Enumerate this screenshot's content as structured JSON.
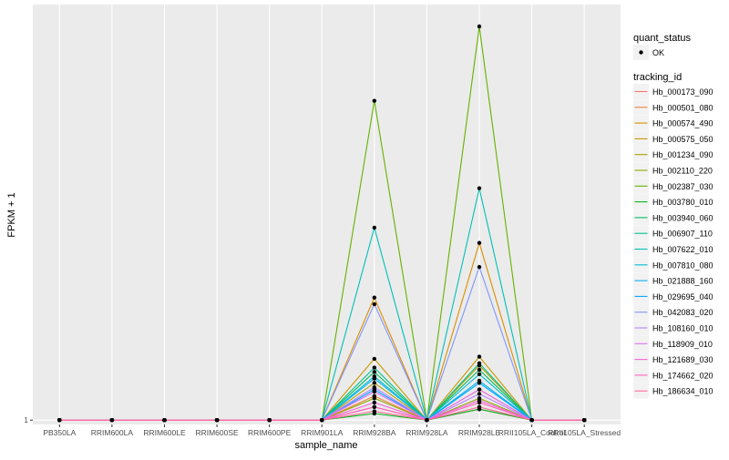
{
  "chart_data": {
    "type": "line",
    "xlabel": "sample_name",
    "ylabel": "FPKM + 1",
    "categories": [
      "PB350LA",
      "RRIM600LA",
      "RRIM600LE",
      "RRIM600SE",
      "RRIM600PE",
      "RRIM901LA",
      "RRIM928BA",
      "RRIM928LA",
      "RRIM928LE",
      "RRII105LA_Control",
      "RRII105LA_Stressed"
    ],
    "y_tick_labels": [
      "1"
    ],
    "y_tick_values": [
      1
    ],
    "ylim": [
      0.8,
      20
    ],
    "grid": true,
    "legend_position": "right",
    "legend": {
      "shape_title": "quant_status",
      "shape_item": "OK",
      "color_title": "tracking_id"
    },
    "series": [
      {
        "name": "Hb_000173_090",
        "color": "#F8766D",
        "values": [
          1,
          1,
          1,
          1,
          1,
          1,
          1.6,
          1,
          1.5,
          1,
          1
        ]
      },
      {
        "name": "Hb_000501_080",
        "color": "#EC8239",
        "values": [
          1,
          1,
          1,
          1,
          1,
          1,
          2.1,
          1,
          2.4,
          1,
          1
        ]
      },
      {
        "name": "Hb_000574_490",
        "color": "#DB8E00",
        "values": [
          1,
          1,
          1,
          1,
          1,
          1,
          6.6,
          1,
          9.1,
          1,
          1
        ]
      },
      {
        "name": "Hb_000575_050",
        "color": "#C79800",
        "values": [
          1,
          1,
          1,
          1,
          1,
          1,
          3.8,
          1,
          3.9,
          1,
          1
        ]
      },
      {
        "name": "Hb_001234_090",
        "color": "#AEA200",
        "values": [
          1,
          1,
          1,
          1,
          1,
          1,
          2.7,
          1,
          3.5,
          1,
          1
        ]
      },
      {
        "name": "Hb_002110_220",
        "color": "#8FAA00",
        "values": [
          1,
          1,
          1,
          1,
          1,
          1,
          2.0,
          1,
          2.0,
          1,
          1
        ]
      },
      {
        "name": "Hb_002387_030",
        "color": "#64B200",
        "values": [
          1,
          1,
          1,
          1,
          1,
          1,
          15.6,
          1,
          19.0,
          1,
          1
        ]
      },
      {
        "name": "Hb_003780_010",
        "color": "#00B81B",
        "values": [
          1,
          1,
          1,
          1,
          1,
          1,
          1.3,
          1,
          1.5,
          1,
          1
        ]
      },
      {
        "name": "Hb_003940_060",
        "color": "#00BD5C",
        "values": [
          1,
          1,
          1,
          1,
          1,
          1,
          3.2,
          1,
          3.3,
          1,
          1
        ]
      },
      {
        "name": "Hb_006907_110",
        "color": "#00C08E",
        "values": [
          1,
          1,
          1,
          1,
          1,
          1,
          3.4,
          1,
          3.6,
          1,
          1
        ]
      },
      {
        "name": "Hb_007622_010",
        "color": "#00C1B7",
        "values": [
          1,
          1,
          1,
          1,
          1,
          1,
          9.8,
          1,
          11.6,
          1,
          1
        ]
      },
      {
        "name": "Hb_007810_080",
        "color": "#00BDD4",
        "values": [
          1,
          1,
          1,
          1,
          1,
          1,
          3.0,
          1,
          3.1,
          1,
          1
        ]
      },
      {
        "name": "Hb_021888_160",
        "color": "#00B5EE",
        "values": [
          1,
          1,
          1,
          1,
          1,
          1,
          2.9,
          1,
          2.8,
          1,
          1
        ]
      },
      {
        "name": "Hb_029695_040",
        "color": "#00A7FF",
        "values": [
          1,
          1,
          1,
          1,
          1,
          1,
          2.4,
          1,
          2.7,
          1,
          1
        ]
      },
      {
        "name": "Hb_042083_020",
        "color": "#7F96FF",
        "values": [
          1,
          1,
          1,
          1,
          1,
          1,
          6.3,
          1,
          8.0,
          1,
          1
        ]
      },
      {
        "name": "Hb_108160_010",
        "color": "#BC81FF",
        "values": [
          1,
          1,
          1,
          1,
          1,
          1,
          2.5,
          1,
          2.2,
          1,
          1
        ]
      },
      {
        "name": "Hb_118909_010",
        "color": "#E26EF7",
        "values": [
          1,
          1,
          1,
          1,
          1,
          1,
          2.3,
          1,
          2.4,
          1,
          1
        ]
      },
      {
        "name": "Hb_121689_030",
        "color": "#F863DF",
        "values": [
          1,
          1,
          1,
          1,
          1,
          1,
          1.8,
          1,
          1.9,
          1,
          1
        ]
      },
      {
        "name": "Hb_174662_020",
        "color": "#FF62BF",
        "values": [
          1,
          1,
          1,
          1,
          1,
          1,
          1.6,
          1,
          1.8,
          1,
          1
        ]
      },
      {
        "name": "Hb_186634_010",
        "color": "#FF6A9A",
        "values": [
          1,
          1,
          1,
          1,
          1,
          1,
          1.4,
          1,
          1.6,
          1,
          1
        ]
      }
    ]
  }
}
